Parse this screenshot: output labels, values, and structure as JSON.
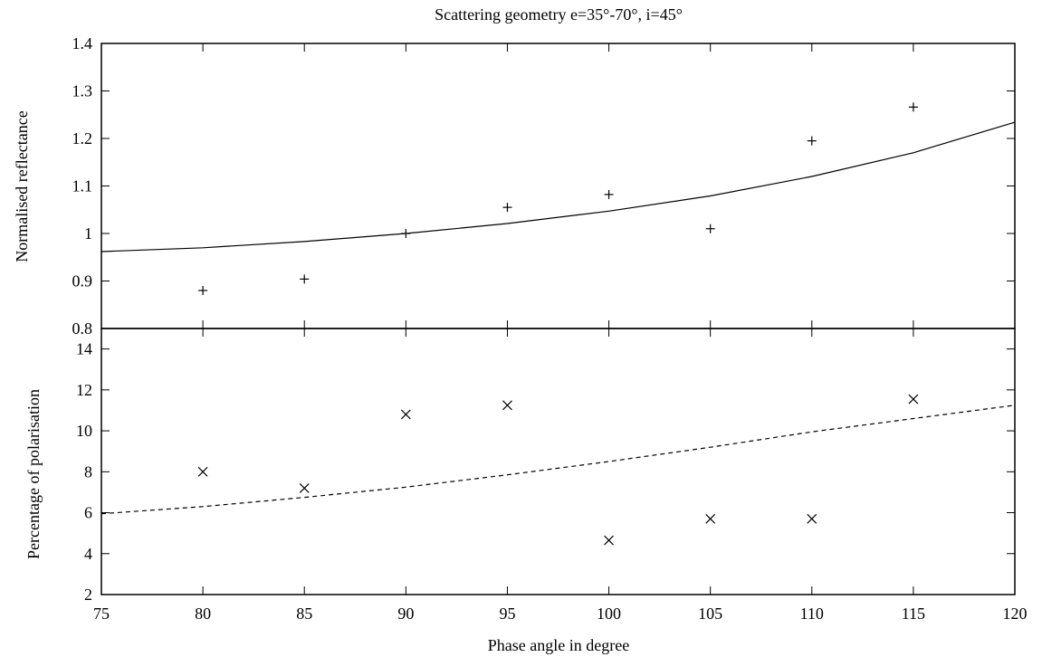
{
  "chart_data": {
    "title": "Scattering geometry e=35°-70°, i=45°",
    "xlabel": "Phase angle in degree",
    "xlim": [
      75,
      120
    ],
    "xticks": [
      75,
      80,
      85,
      90,
      95,
      100,
      105,
      110,
      115,
      120
    ],
    "panels": [
      {
        "type": "scatter",
        "ylabel": "Normalised reflectance",
        "ylim": [
          0.8,
          1.4
        ],
        "yticks": [
          0.8,
          0.9,
          1,
          1.1,
          1.2,
          1.3,
          1.4
        ],
        "ytick_labels": [
          "0.8",
          "0.9",
          "1",
          "1.1",
          "1.2",
          "1.3",
          "1.4"
        ],
        "points": {
          "marker": "plus",
          "x": [
            80,
            85,
            90,
            95,
            100,
            105,
            110,
            115
          ],
          "y": [
            0.88,
            0.904,
            1.0,
            1.055,
            1.082,
            1.01,
            1.195,
            1.266
          ]
        },
        "fit": {
          "style": "solid",
          "x": [
            75,
            80,
            85,
            90,
            95,
            100,
            105,
            110,
            115,
            120
          ],
          "y": [
            0.962,
            0.97,
            0.983,
            1.0,
            1.021,
            1.047,
            1.079,
            1.12,
            1.17,
            1.234
          ]
        }
      },
      {
        "type": "scatter",
        "ylabel": "Percentage of polarisation",
        "ylim": [
          2,
          15
        ],
        "yticks": [
          2,
          4,
          6,
          8,
          10,
          12,
          14
        ],
        "ytick_labels": [
          "2",
          "4",
          "6",
          "8",
          "10",
          "12",
          "14"
        ],
        "points": {
          "marker": "cross",
          "x": [
            80,
            85,
            90,
            95,
            100,
            105,
            110,
            115
          ],
          "y": [
            8.0,
            7.2,
            10.8,
            11.25,
            4.65,
            5.7,
            5.7,
            11.55
          ]
        },
        "fit": {
          "style": "dashed",
          "x": [
            75,
            80,
            85,
            90,
            95,
            100,
            105,
            110,
            115,
            120
          ],
          "y": [
            5.95,
            6.3,
            6.75,
            7.25,
            7.85,
            8.5,
            9.2,
            9.95,
            10.6,
            11.25
          ]
        }
      }
    ]
  }
}
